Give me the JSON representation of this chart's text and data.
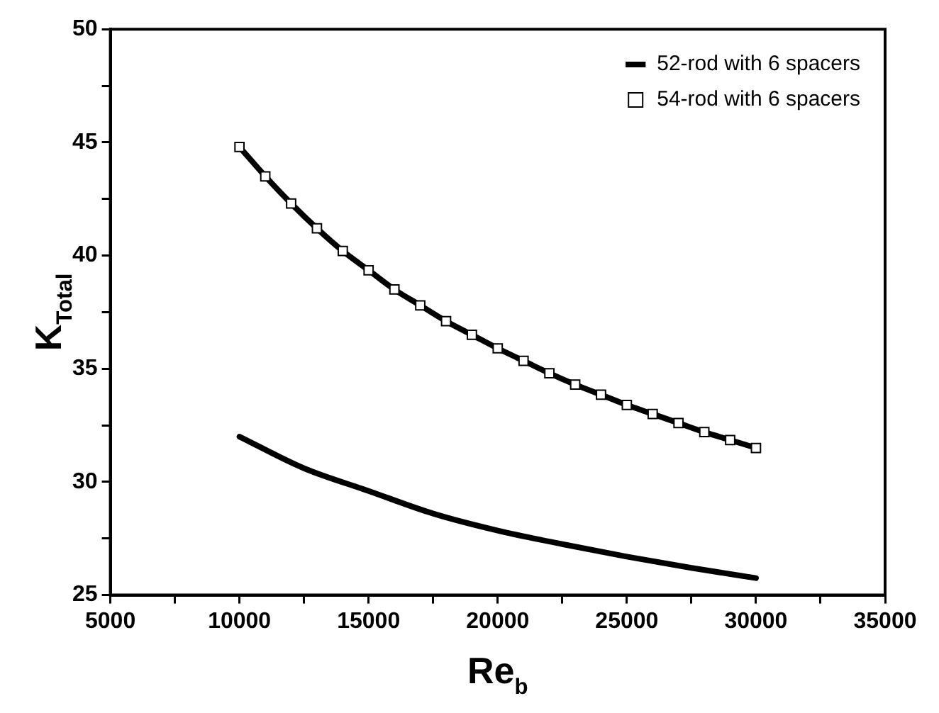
{
  "chart_data": {
    "type": "line",
    "xlabel": "Re$_{b}$",
    "ylabel": "K$_{Total}$",
    "xlim": [
      5000,
      35000
    ],
    "xticks": [
      5000,
      {
        "value": 7500,
        "label": null
      },
      10000,
      {
        "value": 12500,
        "label": null
      },
      15000,
      {
        "value": 17500,
        "label": null
      },
      20000,
      {
        "value": 22500,
        "label": null
      },
      25000,
      {
        "value": 27500,
        "label": null
      },
      30000,
      {
        "value": 32500,
        "label": null
      },
      35000
    ],
    "ylim": [
      25,
      50
    ],
    "yticks": [
      25,
      {
        "value": 27.5,
        "label": null
      },
      30,
      {
        "value": 32.5,
        "label": null
      },
      35,
      {
        "value": 37.5,
        "label": null
      },
      40,
      {
        "value": 42.5,
        "label": null
      },
      45,
      {
        "value": 47.5,
        "label": null
      },
      50
    ],
    "grid": false,
    "legend": "top right",
    "series": [
      {
        "name": "52-rod with 6 spacers",
        "color": "#000000",
        "marker": "none",
        "x": [
          10000,
          12500,
          15000,
          17500,
          20000,
          22500,
          25000,
          27500,
          30000
        ],
        "values": [
          32.0,
          30.6,
          29.6,
          28.6,
          27.85,
          27.25,
          26.7,
          26.2,
          25.75
        ]
      },
      {
        "name": "54-rod with 6 spacers",
        "color": "#000000",
        "marker": "square",
        "x": [
          10000,
          11000,
          12000,
          13000,
          14000,
          15000,
          16000,
          17000,
          18000,
          19000,
          20000,
          21000,
          22000,
          23000,
          24000,
          25000,
          26000,
          27000,
          28000,
          29000,
          30000
        ],
        "values": [
          44.8,
          43.5,
          42.3,
          41.2,
          40.2,
          39.35,
          38.5,
          37.8,
          37.1,
          36.5,
          35.9,
          35.35,
          34.8,
          34.3,
          33.85,
          33.4,
          33.0,
          32.6,
          32.2,
          31.85,
          31.5
        ]
      }
    ]
  }
}
